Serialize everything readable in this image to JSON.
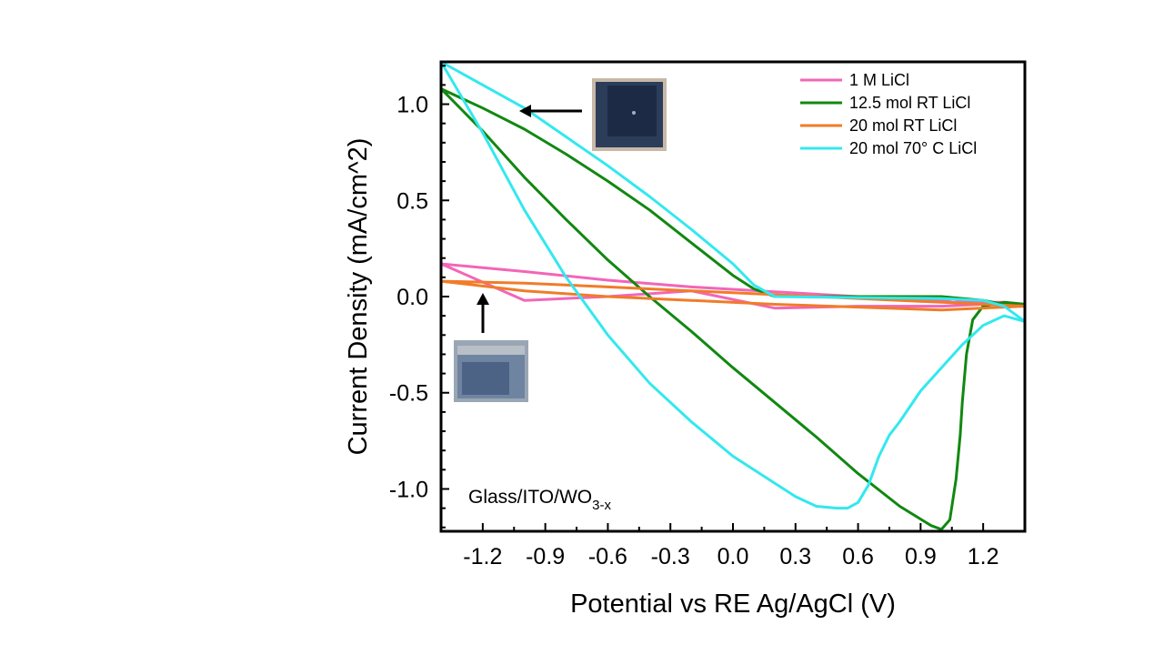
{
  "chart_data": {
    "type": "line",
    "title": "",
    "xlabel": "Potential vs RE Ag/AgCl (V)",
    "ylabel": "Current Density (mA/cm^2)",
    "xlim": [
      -1.4,
      1.4
    ],
    "ylim": [
      -1.22,
      1.22
    ],
    "xticks": [
      -1.2,
      -0.9,
      -0.6,
      -0.3,
      0.0,
      0.3,
      0.6,
      0.9,
      1.2
    ],
    "xtick_labels": [
      "-1.2",
      "-0.9",
      "-0.6",
      "-0.3",
      "0.0",
      "0.3",
      "0.6",
      "0.9",
      "1.2"
    ],
    "yticks": [
      -1.0,
      -0.5,
      0.0,
      0.5,
      1.0
    ],
    "ytick_labels": [
      "-1.0",
      "-0.5",
      "0.0",
      "0.5",
      "1.0"
    ],
    "grid": false,
    "legend_position": "top-right",
    "annotation": {
      "text": "Glass/ITO/WO",
      "subscript": "3-x"
    },
    "series": [
      {
        "name": "1 M LiCl",
        "color": "#f266b8",
        "x": [
          -1.4,
          -1.0,
          -0.6,
          -0.2,
          0.2,
          0.6,
          1.0,
          1.06,
          1.1,
          1.2,
          1.3,
          1.4,
          1.2,
          1.0,
          0.6,
          0.2,
          -0.2,
          -0.6,
          -1.0,
          -1.4
        ],
        "y": [
          0.17,
          0.13,
          0.085,
          0.05,
          0.025,
          0.0,
          -0.02,
          -0.03,
          -0.025,
          -0.03,
          -0.03,
          -0.04,
          -0.04,
          -0.05,
          -0.05,
          -0.06,
          0.03,
          0.0,
          -0.02,
          0.17
        ]
      },
      {
        "name": "12.5 mol RT LiCl",
        "color": "#118811",
        "x": [
          -1.4,
          -1.2,
          -1.0,
          -0.8,
          -0.6,
          -0.4,
          -0.2,
          0.0,
          0.2,
          0.4,
          0.6,
          0.8,
          0.95,
          1.0,
          1.04,
          1.07,
          1.09,
          1.1,
          1.12,
          1.15,
          1.2,
          1.3,
          1.4,
          1.3,
          1.2,
          1.0,
          0.6,
          0.2,
          0.1,
          0.0,
          -0.2,
          -0.4,
          -0.6,
          -0.8,
          -1.0,
          -1.2,
          -1.4
        ],
        "y": [
          1.08,
          0.86,
          0.62,
          0.4,
          0.19,
          0.0,
          -0.18,
          -0.37,
          -0.55,
          -0.73,
          -0.92,
          -1.09,
          -1.19,
          -1.21,
          -1.16,
          -0.95,
          -0.72,
          -0.55,
          -0.3,
          -0.12,
          -0.05,
          -0.03,
          -0.04,
          -0.04,
          -0.02,
          0.0,
          0.0,
          0.0,
          0.04,
          0.11,
          0.28,
          0.45,
          0.6,
          0.74,
          0.87,
          0.98,
          1.08
        ]
      },
      {
        "name": "20 mol RT LiCl",
        "color": "#f07c28",
        "x": [
          -1.4,
          -1.0,
          -0.6,
          -0.2,
          0.2,
          0.6,
          1.0,
          1.4,
          1.0,
          0.6,
          0.2,
          -0.2,
          -0.6,
          -1.0,
          -1.4
        ],
        "y": [
          0.08,
          0.07,
          0.05,
          0.03,
          0.01,
          -0.01,
          -0.03,
          -0.05,
          -0.07,
          -0.055,
          -0.04,
          -0.02,
          0.0,
          0.03,
          0.08
        ]
      },
      {
        "name": "20 mol 70° C LiCl",
        "color": "#33e8ee",
        "x": [
          -1.4,
          -1.2,
          -1.0,
          -0.8,
          -0.6,
          -0.4,
          -0.2,
          0.0,
          0.2,
          0.3,
          0.4,
          0.5,
          0.55,
          0.6,
          0.65,
          0.7,
          0.75,
          0.8,
          0.9,
          1.0,
          1.1,
          1.2,
          1.3,
          1.4,
          1.3,
          1.2,
          1.0,
          0.6,
          0.2,
          0.1,
          0.0,
          -0.2,
          -0.4,
          -0.6,
          -0.8,
          -1.0,
          -1.2,
          -1.4
        ],
        "y": [
          1.22,
          0.85,
          0.45,
          0.1,
          -0.2,
          -0.45,
          -0.65,
          -0.83,
          -0.97,
          -1.04,
          -1.09,
          -1.1,
          -1.1,
          -1.07,
          -0.98,
          -0.83,
          -0.72,
          -0.65,
          -0.49,
          -0.37,
          -0.25,
          -0.15,
          -0.1,
          -0.13,
          -0.05,
          -0.02,
          -0.01,
          -0.005,
          0.0,
          0.06,
          0.17,
          0.35,
          0.52,
          0.68,
          0.83,
          0.98,
          1.1,
          1.22
        ]
      }
    ]
  }
}
